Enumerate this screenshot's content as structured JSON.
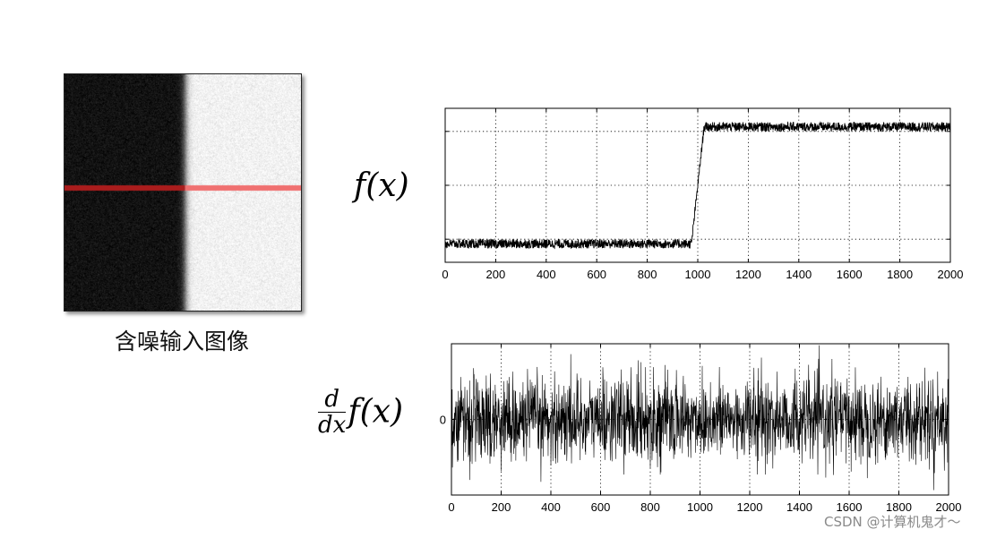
{
  "input_image": {
    "caption": "含噪输入图像",
    "left_color": "#111111",
    "right_color": "#f2f2f2",
    "scanline_color": "#cc2222"
  },
  "labels": {
    "f_x": "f(x)",
    "derivative_num": "d",
    "derivative_den": "dx",
    "derivative_rest": "f(x)"
  },
  "chart_data": [
    {
      "type": "line",
      "name": "signal",
      "x_range": [
        0,
        2000
      ],
      "xticks": [
        0,
        200,
        400,
        600,
        800,
        1000,
        1200,
        1400,
        1600,
        1800,
        2000
      ],
      "xtick_labels": [
        "0",
        "200",
        "400",
        "600",
        "800",
        "1000",
        "1200",
        "1400",
        "1600",
        "1800",
        "2000"
      ],
      "ylim": [
        0,
        1
      ],
      "low_level": 0.12,
      "high_level": 0.88,
      "step_start": 975,
      "step_end": 1025,
      "noise_amplitude": 0.03,
      "grid": true,
      "line_color": "#000000"
    },
    {
      "type": "line",
      "name": "derivative",
      "x_range": [
        0,
        2000
      ],
      "xticks": [
        0,
        200,
        400,
        600,
        800,
        1000,
        1200,
        1400,
        1600,
        1800,
        2000
      ],
      "xtick_labels": [
        "0",
        "200",
        "400",
        "600",
        "800",
        "1000",
        "1200",
        "1400",
        "1600",
        "1800",
        "2000"
      ],
      "yticks": [
        0
      ],
      "ytick_labels": [
        "0"
      ],
      "ylim": [
        -1,
        1
      ],
      "noise_amplitude": 0.5,
      "grid": true,
      "line_color": "#000000"
    }
  ],
  "watermark": "CSDN @计算机鬼才～"
}
